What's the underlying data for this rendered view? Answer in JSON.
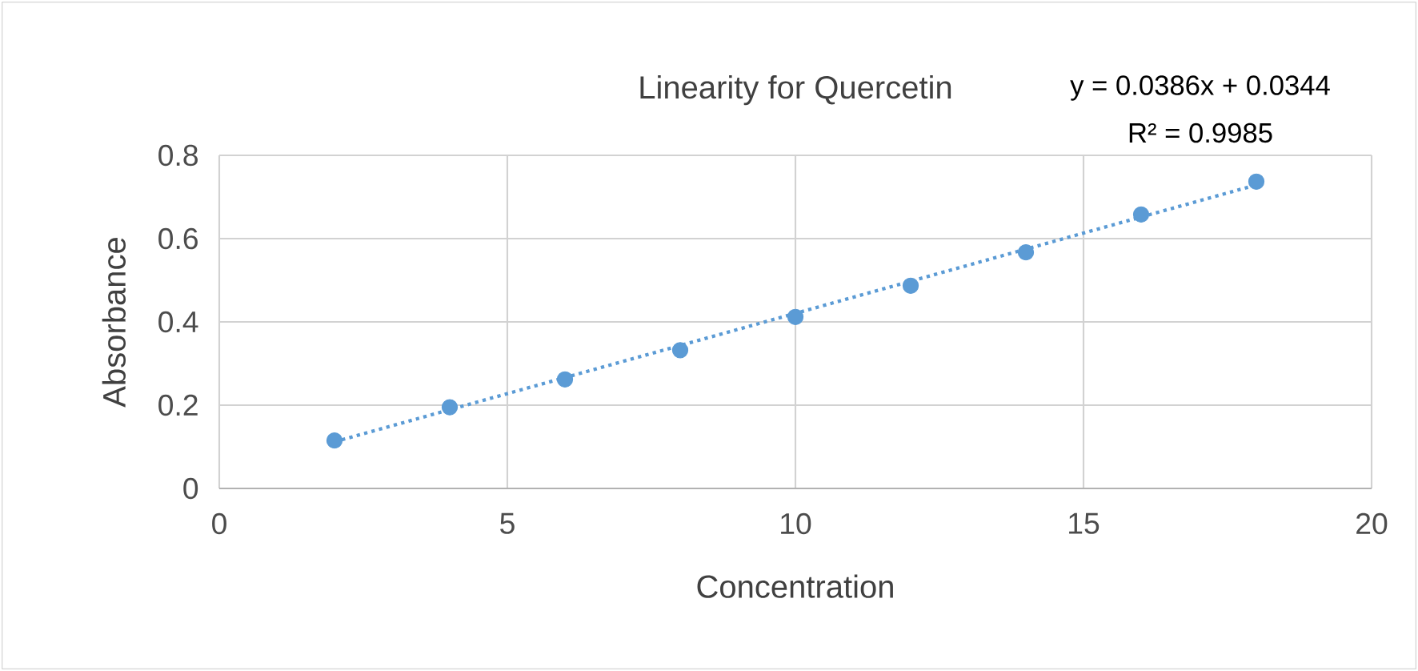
{
  "chart_data": {
    "type": "scatter",
    "title": "Linearity for Quercetin",
    "xlabel": "Concentration",
    "ylabel": "Absorbance",
    "annotations": [
      "y = 0.0386x + 0.0344",
      "R² = 0.9985"
    ],
    "xlim": [
      0,
      20
    ],
    "xticks": [
      0,
      5,
      10,
      15,
      20
    ],
    "ylim": [
      0,
      0.8
    ],
    "yticks": [
      0,
      0.2,
      0.4,
      0.6,
      0.8
    ],
    "grid": true,
    "marker": "circle",
    "series": [
      {
        "color": "#5b9bd5",
        "x": [
          2,
          4,
          6,
          8,
          10,
          12,
          14,
          16,
          18
        ],
        "values": [
          0.115,
          0.195,
          0.262,
          0.332,
          0.412,
          0.487,
          0.567,
          0.658,
          0.737
        ]
      },
      {
        "type": "line",
        "color": "#5b9bd5",
        "line_style": "dotted",
        "marker": "none",
        "x": [
          2,
          18
        ],
        "values": [
          0.112,
          0.729
        ]
      }
    ]
  }
}
